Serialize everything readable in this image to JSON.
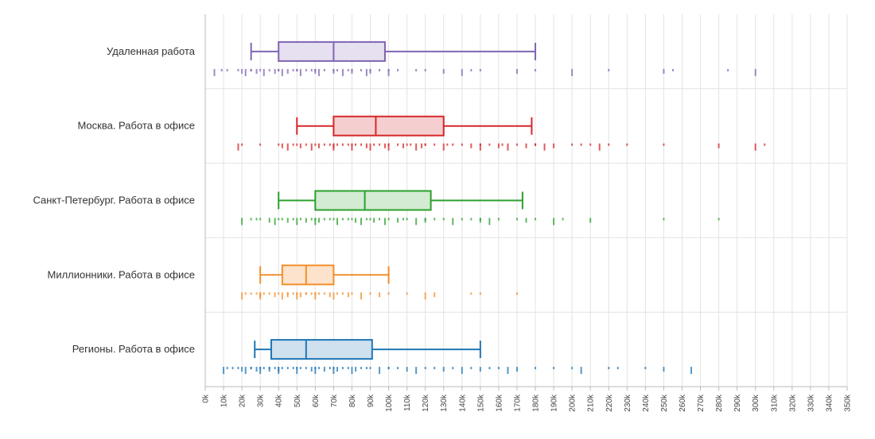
{
  "chart_data": {
    "type": "boxplot",
    "xlim": [
      0,
      350000
    ],
    "x_tick_step": 10000,
    "x_tick_labels": [
      "0k",
      "10k",
      "20k",
      "30k",
      "40k",
      "50k",
      "60k",
      "70k",
      "80k",
      "90k",
      "100k",
      "110k",
      "120k",
      "130k",
      "140k",
      "150k",
      "160k",
      "170k",
      "180k",
      "190k",
      "200k",
      "210k",
      "220k",
      "230k",
      "240k",
      "250k",
      "260k",
      "270k",
      "280k",
      "290k",
      "300k",
      "310k",
      "320k",
      "330k",
      "340k",
      "350k"
    ],
    "grid": true,
    "categories": [
      {
        "label": "Удаленная работа",
        "color": "#8064b2",
        "fill": "#e6e0f0",
        "whisker_low": 25000,
        "q1": 40000,
        "median": 70000,
        "q3": 98000,
        "whisker_high": 180000,
        "points": [
          5000,
          9000,
          12000,
          18000,
          20000,
          22000,
          25000,
          25000,
          28000,
          30000,
          32000,
          35000,
          38000,
          40000,
          40000,
          42000,
          45000,
          48000,
          50000,
          50000,
          52000,
          55000,
          58000,
          60000,
          60000,
          62000,
          65000,
          70000,
          70000,
          72000,
          75000,
          78000,
          80000,
          80000,
          85000,
          88000,
          90000,
          90000,
          95000,
          100000,
          100000,
          105000,
          115000,
          120000,
          130000,
          140000,
          145000,
          150000,
          170000,
          180000,
          200000,
          220000,
          250000,
          255000,
          285000,
          300000
        ]
      },
      {
        "label": "Москва. Работа в офисе",
        "color": "#d62728",
        "fill": "#f5cfcf",
        "whisker_low": 50000,
        "q1": 70000,
        "median": 93000,
        "q3": 130000,
        "whisker_high": 178000,
        "points": [
          18000,
          20000,
          30000,
          40000,
          42000,
          45000,
          48000,
          50000,
          52000,
          55000,
          58000,
          60000,
          62000,
          65000,
          68000,
          70000,
          70000,
          72000,
          75000,
          78000,
          80000,
          80000,
          82000,
          85000,
          88000,
          90000,
          92000,
          95000,
          98000,
          100000,
          100000,
          105000,
          108000,
          110000,
          112000,
          115000,
          118000,
          120000,
          120000,
          125000,
          130000,
          132000,
          135000,
          140000,
          145000,
          150000,
          150000,
          155000,
          160000,
          162000,
          165000,
          170000,
          175000,
          180000,
          180000,
          185000,
          190000,
          200000,
          205000,
          210000,
          215000,
          220000,
          230000,
          250000,
          280000,
          300000,
          305000
        ]
      },
      {
        "label": "Санкт-Петербург. Работа в офисе",
        "color": "#2ca02c",
        "fill": "#d2ebd2",
        "whisker_low": 40000,
        "q1": 60000,
        "median": 87000,
        "q3": 123000,
        "whisker_high": 173000,
        "points": [
          20000,
          25000,
          28000,
          30000,
          35000,
          38000,
          40000,
          42000,
          45000,
          48000,
          50000,
          52000,
          55000,
          58000,
          60000,
          60000,
          62000,
          65000,
          68000,
          70000,
          72000,
          75000,
          78000,
          80000,
          82000,
          85000,
          88000,
          90000,
          92000,
          95000,
          98000,
          100000,
          105000,
          108000,
          110000,
          115000,
          120000,
          120000,
          125000,
          130000,
          135000,
          140000,
          145000,
          150000,
          150000,
          155000,
          160000,
          170000,
          175000,
          180000,
          190000,
          195000,
          210000,
          250000,
          280000
        ]
      },
      {
        "label": "Миллионники. Работа в офисе",
        "color": "#f28e2b",
        "fill": "#fde3cc",
        "whisker_low": 30000,
        "q1": 42000,
        "median": 55000,
        "q3": 70000,
        "whisker_high": 100000,
        "points": [
          20000,
          22000,
          25000,
          28000,
          30000,
          30000,
          32000,
          35000,
          38000,
          40000,
          42000,
          45000,
          45000,
          48000,
          50000,
          50000,
          52000,
          55000,
          55000,
          58000,
          60000,
          60000,
          62000,
          65000,
          68000,
          70000,
          72000,
          75000,
          78000,
          80000,
          85000,
          90000,
          95000,
          100000,
          110000,
          120000,
          125000,
          145000,
          150000,
          170000
        ]
      },
      {
        "label": "Регионы. Работа в офисе",
        "color": "#1f77b4",
        "fill": "#cfe0ef",
        "whisker_low": 27000,
        "q1": 36000,
        "median": 55000,
        "q3": 91000,
        "whisker_high": 150000,
        "points": [
          10000,
          12000,
          15000,
          18000,
          20000,
          22000,
          25000,
          25000,
          28000,
          30000,
          30000,
          32000,
          35000,
          35000,
          38000,
          40000,
          40000,
          42000,
          45000,
          48000,
          50000,
          50000,
          52000,
          55000,
          58000,
          60000,
          60000,
          62000,
          65000,
          68000,
          70000,
          70000,
          72000,
          75000,
          78000,
          80000,
          82000,
          85000,
          88000,
          90000,
          95000,
          100000,
          100000,
          105000,
          110000,
          115000,
          120000,
          125000,
          130000,
          135000,
          140000,
          145000,
          150000,
          155000,
          160000,
          165000,
          170000,
          180000,
          190000,
          200000,
          205000,
          220000,
          225000,
          240000,
          250000,
          265000
        ]
      }
    ]
  }
}
